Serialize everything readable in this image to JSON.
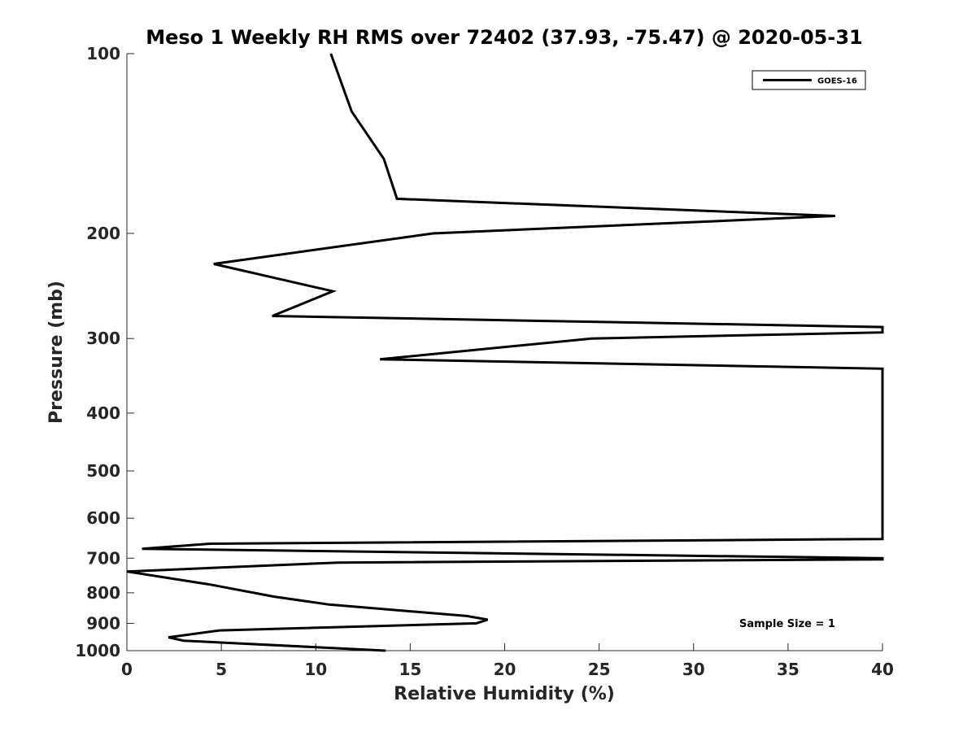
{
  "chart_data": {
    "type": "line",
    "title": "Meso 1 Weekly RH RMS over 72402 (37.93, -75.47) @ 2020-05-31",
    "xlabel": "Relative Humidity (%)",
    "ylabel": "Pressure (mb)",
    "xlim": [
      0,
      40
    ],
    "ylim": [
      100,
      1000
    ],
    "y_scale": "log",
    "y_reversed": true,
    "x_ticks": [
      0,
      5,
      10,
      15,
      20,
      25,
      30,
      35,
      40
    ],
    "y_ticks": [
      100,
      200,
      300,
      400,
      500,
      600,
      700,
      800,
      900,
      1000
    ],
    "grid": false,
    "legend_position": "top-right",
    "annotation": "Sample Size = 1",
    "series": [
      {
        "name": "GOES-16",
        "color": "#000000",
        "points": [
          {
            "x": 10.8,
            "p": 100
          },
          {
            "x": 11.9,
            "p": 125
          },
          {
            "x": 13.6,
            "p": 150
          },
          {
            "x": 14.3,
            "p": 175
          },
          {
            "x": 37.5,
            "p": 187
          },
          {
            "x": 16.2,
            "p": 200
          },
          {
            "x": 4.6,
            "p": 225
          },
          {
            "x": 10.9,
            "p": 250
          },
          {
            "x": 7.7,
            "p": 275
          },
          {
            "x": 40.0,
            "p": 287
          },
          {
            "x": 40.0,
            "p": 293
          },
          {
            "x": 24.6,
            "p": 300
          },
          {
            "x": 13.4,
            "p": 325
          },
          {
            "x": 40.0,
            "p": 337
          },
          {
            "x": 40.0,
            "p": 650
          },
          {
            "x": 4.4,
            "p": 662
          },
          {
            "x": 0.8,
            "p": 675
          },
          {
            "x": 40.0,
            "p": 700
          },
          {
            "x": 40.0,
            "p": 703
          },
          {
            "x": 11.2,
            "p": 712
          },
          {
            "x": 0.0,
            "p": 737
          },
          {
            "x": 4.4,
            "p": 775
          },
          {
            "x": 7.8,
            "p": 812
          },
          {
            "x": 10.7,
            "p": 837
          },
          {
            "x": 18.0,
            "p": 875
          },
          {
            "x": 19.1,
            "p": 887
          },
          {
            "x": 18.5,
            "p": 900
          },
          {
            "x": 4.9,
            "p": 925
          },
          {
            "x": 2.2,
            "p": 950
          },
          {
            "x": 3.0,
            "p": 962
          },
          {
            "x": 13.7,
            "p": 1000
          }
        ]
      }
    ]
  }
}
